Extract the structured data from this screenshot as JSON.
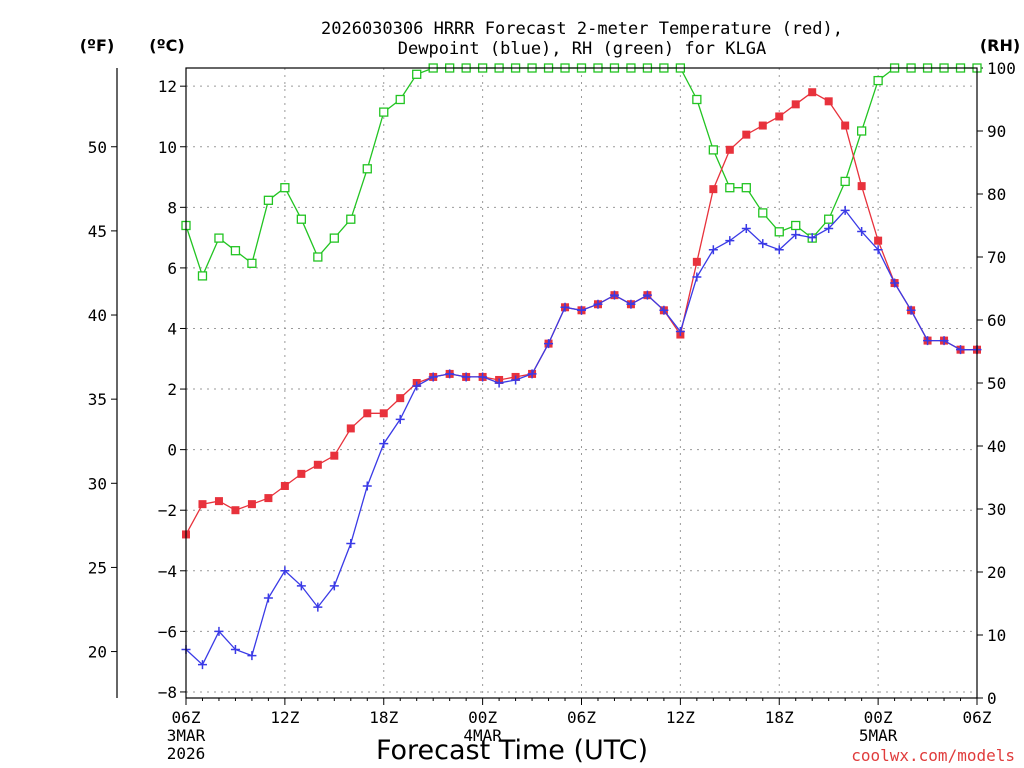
{
  "chart_data": {
    "type": "line",
    "title_line1": "2026030306 HRRR Forecast 2-meter Temperature (red),",
    "title_line2": "Dewpoint (blue), RH (green) for KLGA",
    "xlabel": "Forecast Time (UTC)",
    "credit": "coolwx.com/models",
    "units": {
      "fahrenheit": "(ºF)",
      "celsius": "(ºC)",
      "rh": "(RH)"
    },
    "x_range_hours": [
      0,
      48
    ],
    "y_celsius_range": [
      -8.2,
      12.6
    ],
    "y_rh_range": [
      0,
      100
    ],
    "grid": true,
    "x_ticks": [
      {
        "h": 0,
        "label": "06Z",
        "sub1": "3MAR",
        "sub2": "2026"
      },
      {
        "h": 6,
        "label": "12Z",
        "sub1": "",
        "sub2": ""
      },
      {
        "h": 12,
        "label": "18Z",
        "sub1": "",
        "sub2": ""
      },
      {
        "h": 18,
        "label": "00Z",
        "sub1": "4MAR",
        "sub2": ""
      },
      {
        "h": 24,
        "label": "06Z",
        "sub1": "",
        "sub2": ""
      },
      {
        "h": 30,
        "label": "12Z",
        "sub1": "",
        "sub2": ""
      },
      {
        "h": 36,
        "label": "18Z",
        "sub1": "",
        "sub2": ""
      },
      {
        "h": 42,
        "label": "00Z",
        "sub1": "5MAR",
        "sub2": ""
      },
      {
        "h": 48,
        "label": "06Z",
        "sub1": "",
        "sub2": ""
      }
    ],
    "celsius_ticks": [
      {
        "v": 12,
        "label": "12"
      },
      {
        "v": 10,
        "label": "10"
      },
      {
        "v": 8,
        "label": "8"
      },
      {
        "v": 6,
        "label": "6"
      },
      {
        "v": 4,
        "label": "4"
      },
      {
        "v": 2,
        "label": "2"
      },
      {
        "v": 0,
        "label": "0"
      },
      {
        "v": -2,
        "label": "−2"
      },
      {
        "v": -4,
        "label": "−4"
      },
      {
        "v": -6,
        "label": "−6"
      },
      {
        "v": -8,
        "label": "−8"
      }
    ],
    "fahrenheit_ticks": [
      {
        "v": 50,
        "label": "50"
      },
      {
        "v": 45,
        "label": "45"
      },
      {
        "v": 40,
        "label": "40"
      },
      {
        "v": 35,
        "label": "35"
      },
      {
        "v": 30,
        "label": "30"
      },
      {
        "v": 25,
        "label": "25"
      },
      {
        "v": 20,
        "label": "20"
      }
    ],
    "rh_ticks": [
      {
        "v": 100,
        "label": "100"
      },
      {
        "v": 90,
        "label": "90"
      },
      {
        "v": 80,
        "label": "80"
      },
      {
        "v": 70,
        "label": "70"
      },
      {
        "v": 60,
        "label": "60"
      },
      {
        "v": 50,
        "label": "50"
      },
      {
        "v": 40,
        "label": "40"
      },
      {
        "v": 30,
        "label": "30"
      },
      {
        "v": 20,
        "label": "20"
      },
      {
        "v": 10,
        "label": "10"
      },
      {
        "v": 0,
        "label": "0"
      }
    ],
    "series": [
      {
        "key": "temperature",
        "color": "#e8323c",
        "marker": "filled-square",
        "axis": "celsius",
        "values": [
          -2.8,
          -1.8,
          -1.7,
          -2.0,
          -1.8,
          -1.6,
          -1.2,
          -0.8,
          -0.5,
          -0.2,
          0.7,
          1.2,
          1.2,
          1.7,
          2.2,
          2.4,
          2.5,
          2.4,
          2.4,
          2.3,
          2.4,
          2.5,
          3.5,
          4.7,
          4.6,
          4.8,
          5.1,
          4.8,
          5.1,
          4.6,
          3.8,
          6.2,
          8.6,
          9.9,
          10.4,
          10.7,
          11.0,
          11.4,
          11.8,
          11.5,
          10.7,
          8.7,
          6.9,
          5.5,
          4.6,
          3.6,
          3.6,
          3.3,
          3.3
        ]
      },
      {
        "key": "dewpoint",
        "color": "#3a3ae6",
        "marker": "plus",
        "axis": "celsius",
        "values": [
          -6.6,
          -7.1,
          -6.0,
          -6.6,
          -6.8,
          -4.9,
          -4.0,
          -4.5,
          -5.2,
          -4.5,
          -3.1,
          -1.2,
          0.2,
          1.0,
          2.1,
          2.4,
          2.5,
          2.4,
          2.4,
          2.2,
          2.3,
          2.5,
          3.5,
          4.7,
          4.6,
          4.8,
          5.1,
          4.8,
          5.1,
          4.6,
          3.9,
          5.7,
          6.6,
          6.9,
          7.3,
          6.8,
          6.6,
          7.1,
          7.0,
          7.3,
          7.9,
          7.2,
          6.6,
          5.5,
          4.6,
          3.6,
          3.6,
          3.3,
          3.3
        ]
      },
      {
        "key": "rh",
        "color": "#22c422",
        "marker": "open-square",
        "axis": "rh",
        "values": [
          75,
          67,
          73,
          71,
          69,
          79,
          81,
          76,
          70,
          73,
          76,
          84,
          93,
          95,
          99,
          100,
          100,
          100,
          100,
          100,
          100,
          100,
          100,
          100,
          100,
          100,
          100,
          100,
          100,
          100,
          100,
          95,
          87,
          81,
          81,
          77,
          74,
          75,
          73,
          76,
          82,
          90,
          98,
          100,
          100,
          100,
          100,
          100,
          100
        ]
      }
    ]
  }
}
